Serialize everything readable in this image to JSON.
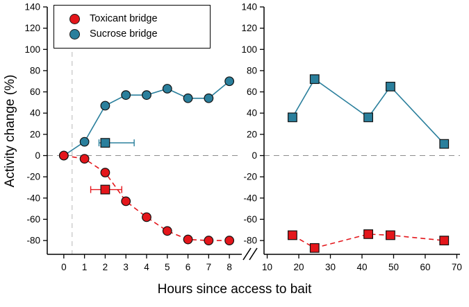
{
  "chart_data": {
    "type": "line",
    "title": "",
    "xlabel": "Hours since access to bait",
    "ylabel": "Activity change (%)",
    "ylim": [
      -93,
      140
    ],
    "yticks": [
      140,
      120,
      100,
      80,
      60,
      40,
      20,
      0,
      -20,
      -40,
      -60,
      -80
    ],
    "grid": false,
    "legend_position": "upper-left",
    "colors": {
      "toxicant": "#e4161b",
      "sucrose": "#2a7f9c"
    },
    "legend": [
      {
        "label": "Toxicant bridge",
        "color_key": "toxicant"
      },
      {
        "label": "Sucrose bridge",
        "color_key": "sucrose"
      }
    ],
    "panels": [
      {
        "xlim": [
          -0.8,
          8.6
        ],
        "xticks": [
          0,
          1,
          2,
          3,
          4,
          5,
          6,
          7,
          8
        ],
        "vline": 0.4,
        "series": [
          {
            "name": "Sucrose bridge",
            "color": "sucrose",
            "marker": "circle",
            "line": "solid",
            "x": [
              0,
              1,
              2,
              3,
              4,
              5,
              6,
              7,
              8
            ],
            "y": [
              0,
              13,
              47,
              57,
              57,
              63,
              54,
              54,
              70
            ]
          },
          {
            "name": "Toxicant bridge",
            "color": "toxicant",
            "marker": "circle",
            "line": "dashed",
            "x": [
              0,
              1,
              2,
              3,
              4,
              5,
              6,
              7,
              8
            ],
            "y": [
              0,
              -3,
              -16,
              -43,
              -58,
              -71,
              -79,
              -80,
              -80
            ]
          }
        ],
        "points": [
          {
            "name": "sucrose-field-point",
            "color": "sucrose",
            "marker": "square",
            "x": 2,
            "y": 12,
            "xerr": [
              1.7,
              3.4
            ]
          },
          {
            "name": "toxicant-field-point",
            "color": "toxicant",
            "marker": "square",
            "x": 2,
            "y": -32,
            "xerr": [
              1.3,
              2.8
            ]
          }
        ]
      },
      {
        "xlim": [
          9,
          71
        ],
        "xticks": [
          10,
          20,
          30,
          40,
          50,
          60,
          70
        ],
        "series": [
          {
            "name": "Sucrose bridge field",
            "color": "sucrose",
            "marker": "square",
            "line": "solid",
            "x": [
              18,
              25,
              42,
              49,
              66
            ],
            "y": [
              36,
              72,
              36,
              65,
              11
            ]
          },
          {
            "name": "Toxicant bridge field",
            "color": "toxicant",
            "marker": "square",
            "line": "dashed",
            "x": [
              18,
              25,
              42,
              49,
              66
            ],
            "y": [
              -75,
              -87,
              -74,
              -75,
              -80
            ]
          }
        ]
      }
    ]
  }
}
